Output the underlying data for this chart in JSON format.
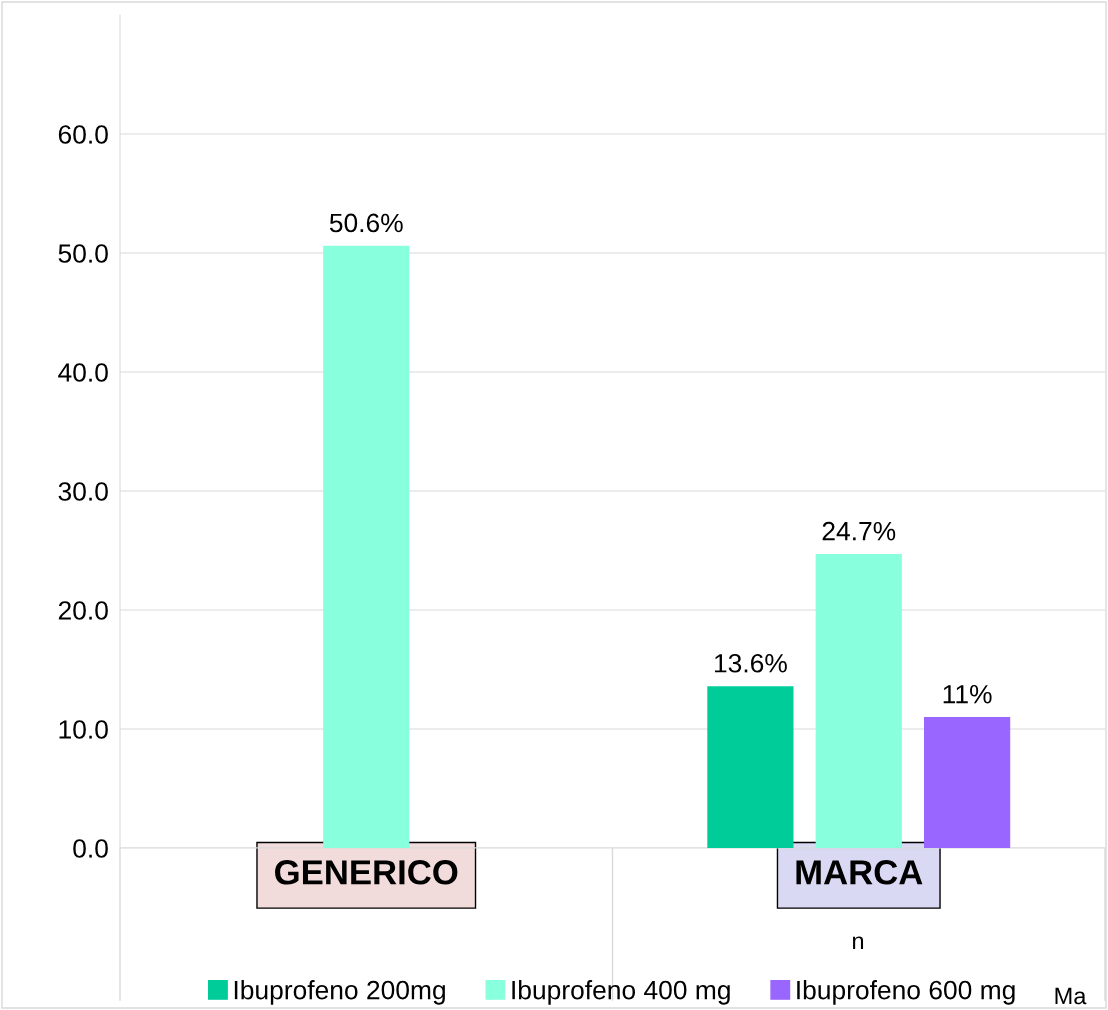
{
  "chart_data": {
    "type": "bar",
    "categories": [
      "GENERICO",
      "MARCA"
    ],
    "series": [
      {
        "name": "Ibuprofeno 200mg",
        "color": "#00cc99",
        "values": [
          null,
          13.6
        ],
        "value_labels": [
          null,
          "13.6%"
        ]
      },
      {
        "name": "Ibuprofeno 400 mg",
        "color": "#88ffdd",
        "values": [
          50.6,
          24.7
        ],
        "value_labels": [
          "50.6%",
          "24.7%"
        ]
      },
      {
        "name": "Ibuprofeno 600 mg",
        "color": "#9966ff",
        "values": [
          null,
          11
        ],
        "value_labels": [
          null,
          "11%"
        ]
      }
    ],
    "ylim": [
      0,
      70
    ],
    "yticks": [
      {
        "value": 0,
        "label": "0.0"
      },
      {
        "value": 10,
        "label": "10.0"
      },
      {
        "value": 20,
        "label": "20.0"
      },
      {
        "value": 30,
        "label": "30.0"
      },
      {
        "value": 40,
        "label": "40.0"
      },
      {
        "value": 50,
        "label": "50.0"
      },
      {
        "value": 60,
        "label": "60.0"
      }
    ],
    "grid": "y",
    "legend": "bottom",
    "annotations": [
      "n",
      "Ma"
    ]
  }
}
